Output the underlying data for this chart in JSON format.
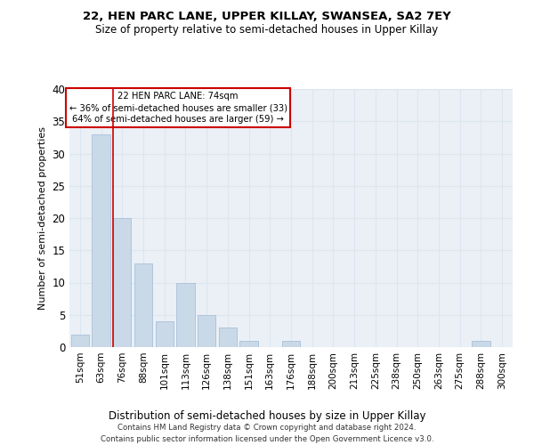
{
  "title1": "22, HEN PARC LANE, UPPER KILLAY, SWANSEA, SA2 7EY",
  "title2": "Size of property relative to semi-detached houses in Upper Killay",
  "xlabel": "Distribution of semi-detached houses by size in Upper Killay",
  "ylabel": "Number of semi-detached properties",
  "footnote": "Contains HM Land Registry data © Crown copyright and database right 2024.\nContains public sector information licensed under the Open Government Licence v3.0.",
  "bar_labels": [
    "51sqm",
    "63sqm",
    "76sqm",
    "88sqm",
    "101sqm",
    "113sqm",
    "126sqm",
    "138sqm",
    "151sqm",
    "163sqm",
    "176sqm",
    "188sqm",
    "200sqm",
    "213sqm",
    "225sqm",
    "238sqm",
    "250sqm",
    "263sqm",
    "275sqm",
    "288sqm",
    "300sqm"
  ],
  "bar_values": [
    2,
    33,
    20,
    13,
    4,
    10,
    5,
    3,
    1,
    0,
    1,
    0,
    0,
    0,
    0,
    0,
    0,
    0,
    0,
    1,
    0
  ],
  "bar_color": "#c9d9e8",
  "bar_edge_color": "#aac0d8",
  "grid_color": "#dce6f0",
  "bg_color": "#eaf0f6",
  "property_line_x": 1.575,
  "annotation_text": "22 HEN PARC LANE: 74sqm\n← 36% of semi-detached houses are smaller (33)\n64% of semi-detached houses are larger (59) →",
  "annotation_box_color": "#cc0000",
  "ylim": [
    0,
    40
  ],
  "yticks": [
    0,
    5,
    10,
    15,
    20,
    25,
    30,
    35,
    40
  ]
}
